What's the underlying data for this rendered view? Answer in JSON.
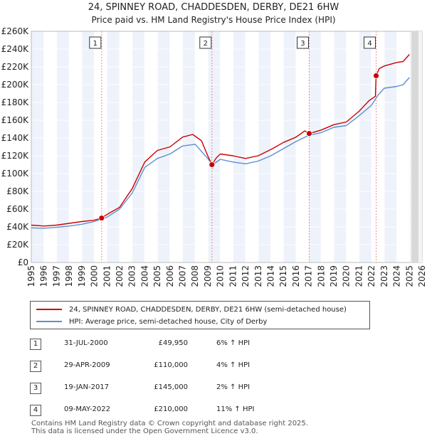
{
  "title_line1": "24, SPINNEY ROAD, CHADDESDEN, DERBY, DE21 6HW",
  "title_line2": "Price paid vs. HM Land Registry's House Price Index (HPI)",
  "colors": {
    "property": "#cc0000",
    "hpi": "#5b8fd0",
    "sale_line": "#ee8888",
    "band": "#eef2fa"
  },
  "chart_data": {
    "type": "line",
    "title": "Price paid vs. HM Land Registry's House Price Index (HPI)",
    "ylabel": "",
    "xlabel": "",
    "xlim": [
      1995,
      2026
    ],
    "ylim": [
      0,
      260000
    ],
    "y_ticks": [
      0,
      20000,
      40000,
      60000,
      80000,
      100000,
      120000,
      140000,
      160000,
      180000,
      200000,
      220000,
      240000,
      260000
    ],
    "y_tick_labels": [
      "£0",
      "£20K",
      "£40K",
      "£60K",
      "£80K",
      "£100K",
      "£120K",
      "£140K",
      "£160K",
      "£180K",
      "£200K",
      "£220K",
      "£240K",
      "£260K"
    ],
    "x_ticks": [
      1995,
      1996,
      1997,
      1998,
      1999,
      2000,
      2001,
      2002,
      2003,
      2004,
      2005,
      2006,
      2007,
      2008,
      2009,
      2010,
      2011,
      2012,
      2013,
      2014,
      2015,
      2016,
      2017,
      2018,
      2019,
      2020,
      2021,
      2022,
      2023,
      2024,
      2025,
      2026
    ],
    "future_start": 2025.1,
    "series": [
      {
        "name": "24, SPINNEY ROAD, CHADDESDEN, DERBY, DE21 6HW (semi-detached house)",
        "x": [
          1995,
          1996,
          1997,
          1998,
          1999,
          2000,
          2000.58,
          2001,
          2002,
          2003,
          2004,
          2005,
          2006,
          2007,
          2007.8,
          2008.5,
          2009.0,
          2009.33,
          2009.7,
          2010,
          2011,
          2012,
          2013,
          2014,
          2015,
          2016,
          2016.7,
          2017.05,
          2018,
          2019,
          2020,
          2021,
          2021.8,
          2022.3,
          2022.36,
          2022.6,
          2023,
          2024,
          2024.5,
          2025
        ],
        "values": [
          42000,
          41000,
          42000,
          44000,
          46000,
          47500,
          49950,
          54000,
          62000,
          83000,
          113000,
          126000,
          130000,
          141000,
          144000,
          137000,
          120000,
          110000,
          118000,
          122000,
          120000,
          117000,
          120000,
          127000,
          135000,
          141000,
          148000,
          145000,
          149000,
          155000,
          158000,
          170000,
          182000,
          187000,
          210000,
          218000,
          221000,
          225000,
          226000,
          234000
        ]
      },
      {
        "name": "HPI: Average price, semi-detached house, City of Derby",
        "x": [
          1995,
          1996,
          1997,
          1998,
          1999,
          2000,
          2001,
          2002,
          2003,
          2004,
          2005,
          2006,
          2007,
          2008,
          2009,
          2009.4,
          2010,
          2011,
          2012,
          2013,
          2014,
          2015,
          2016,
          2017,
          2018,
          2019,
          2020,
          2021,
          2022,
          2022.5,
          2023,
          2024,
          2024.5,
          2025
        ],
        "values": [
          39000,
          38500,
          39500,
          41000,
          43000,
          46000,
          51000,
          60000,
          78000,
          107000,
          117000,
          122000,
          131000,
          133000,
          117000,
          110000,
          116000,
          113000,
          111000,
          114000,
          120000,
          128000,
          136000,
          143000,
          146000,
          152000,
          154000,
          165000,
          177000,
          188000,
          196000,
          198000,
          200000,
          208000
        ]
      }
    ],
    "sales": [
      {
        "id": "1",
        "x": 2000.58,
        "value": 49950
      },
      {
        "id": "2",
        "x": 2009.33,
        "value": 110000
      },
      {
        "id": "3",
        "x": 2017.05,
        "value": 145000
      },
      {
        "id": "4",
        "x": 2022.36,
        "value": 210000
      }
    ]
  },
  "legend": [
    {
      "label": "24, SPINNEY ROAD, CHADDESDEN, DERBY, DE21 6HW (semi-detached house)"
    },
    {
      "label": "HPI: Average price, semi-detached house, City of Derby"
    }
  ],
  "transactions": [
    {
      "num": "1",
      "date": "31-JUL-2000",
      "price": "£49,950",
      "hpi": "6% ↑ HPI"
    },
    {
      "num": "2",
      "date": "29-APR-2009",
      "price": "£110,000",
      "hpi": "4% ↑ HPI"
    },
    {
      "num": "3",
      "date": "19-JAN-2017",
      "price": "£145,000",
      "hpi": "2% ↑ HPI"
    },
    {
      "num": "4",
      "date": "09-MAY-2022",
      "price": "£210,000",
      "hpi": "11% ↑ HPI"
    }
  ],
  "footer_line1": "Contains HM Land Registry data © Crown copyright and database right 2025.",
  "footer_line2": "This data is licensed under the Open Government Licence v3.0."
}
